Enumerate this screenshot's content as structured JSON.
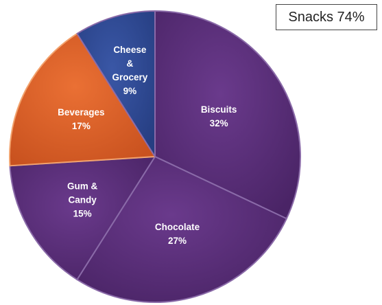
{
  "callout": {
    "text": "Snacks 74%"
  },
  "chart_data": {
    "type": "pie",
    "title": "",
    "slices": [
      {
        "label_lines": [
          "Biscuits",
          "32%"
        ],
        "value": 32,
        "color": "#5a2f78"
      },
      {
        "label_lines": [
          "Chocolate",
          "27%"
        ],
        "value": 27,
        "color": "#5a2f78"
      },
      {
        "label_lines": [
          "Gum &",
          "Candy",
          "15%"
        ],
        "value": 15,
        "color": "#5a2f78"
      },
      {
        "label_lines": [
          "Beverages",
          "17%"
        ],
        "value": 17,
        "color": "#e0612a"
      },
      {
        "label_lines": [
          "Cheese",
          "&",
          "Grocery",
          "9%"
        ],
        "value": 9,
        "color": "#2f4a94"
      }
    ]
  }
}
